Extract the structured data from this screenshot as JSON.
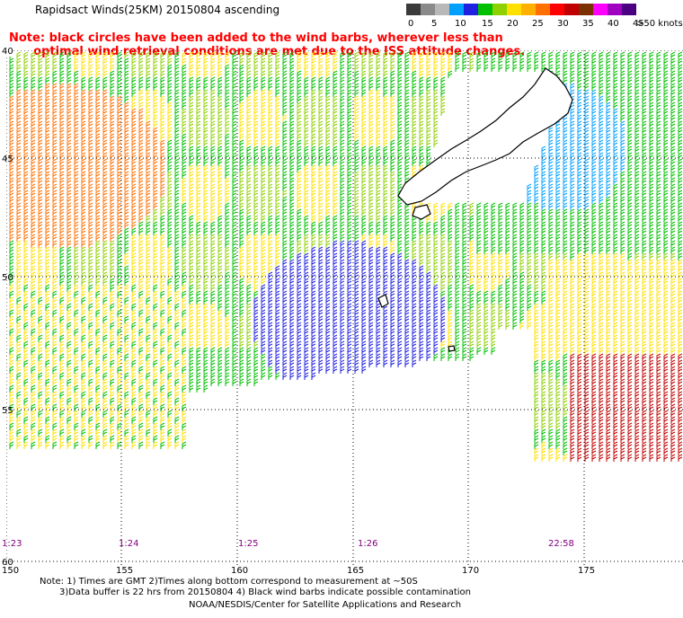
{
  "title": "Rapidsact Winds(25KM) 20150804 ascending",
  "note_line1": "Note: black circles have been added to the wind barbs, wherever less than",
  "note_line2": "optimal wind retrieval conditions are met due to the ISS attitude changes.",
  "colorbar": {
    "labels": [
      "0",
      "5",
      "10",
      "15",
      "20",
      "25",
      "30",
      "35",
      "40",
      "45",
      ">50 knots"
    ],
    "colors": [
      "#3a3a3a",
      "#8a8a8a",
      "#b8b8b8",
      "#00a0ff",
      "#2020e0",
      "#00c000",
      "#8fd000",
      "#ffe000",
      "#ffb000",
      "#ff7000",
      "#ff0000",
      "#c00000",
      "#7a3000",
      "#ff00ff",
      "#a000c0",
      "#4b0082"
    ]
  },
  "axes": {
    "y_labels": [
      "40",
      "45",
      "50",
      "55",
      "60"
    ],
    "x_labels": [
      "150",
      "155",
      "160",
      "165",
      "170",
      "175"
    ]
  },
  "times": [
    "1:23",
    "1:24",
    "1:25",
    "1:26",
    "22:58"
  ],
  "footer_line1": "Note: 1) Times are GMT 2)Times along bottom correspond to measurement at ~50S",
  "footer_line2": "3)Data buffer is 22 hrs from 20150804 4) Black wind barbs indicate possible contamination",
  "footer_line3": "NOAA/NESDIS/Center for Satellite Applications and Research"
}
